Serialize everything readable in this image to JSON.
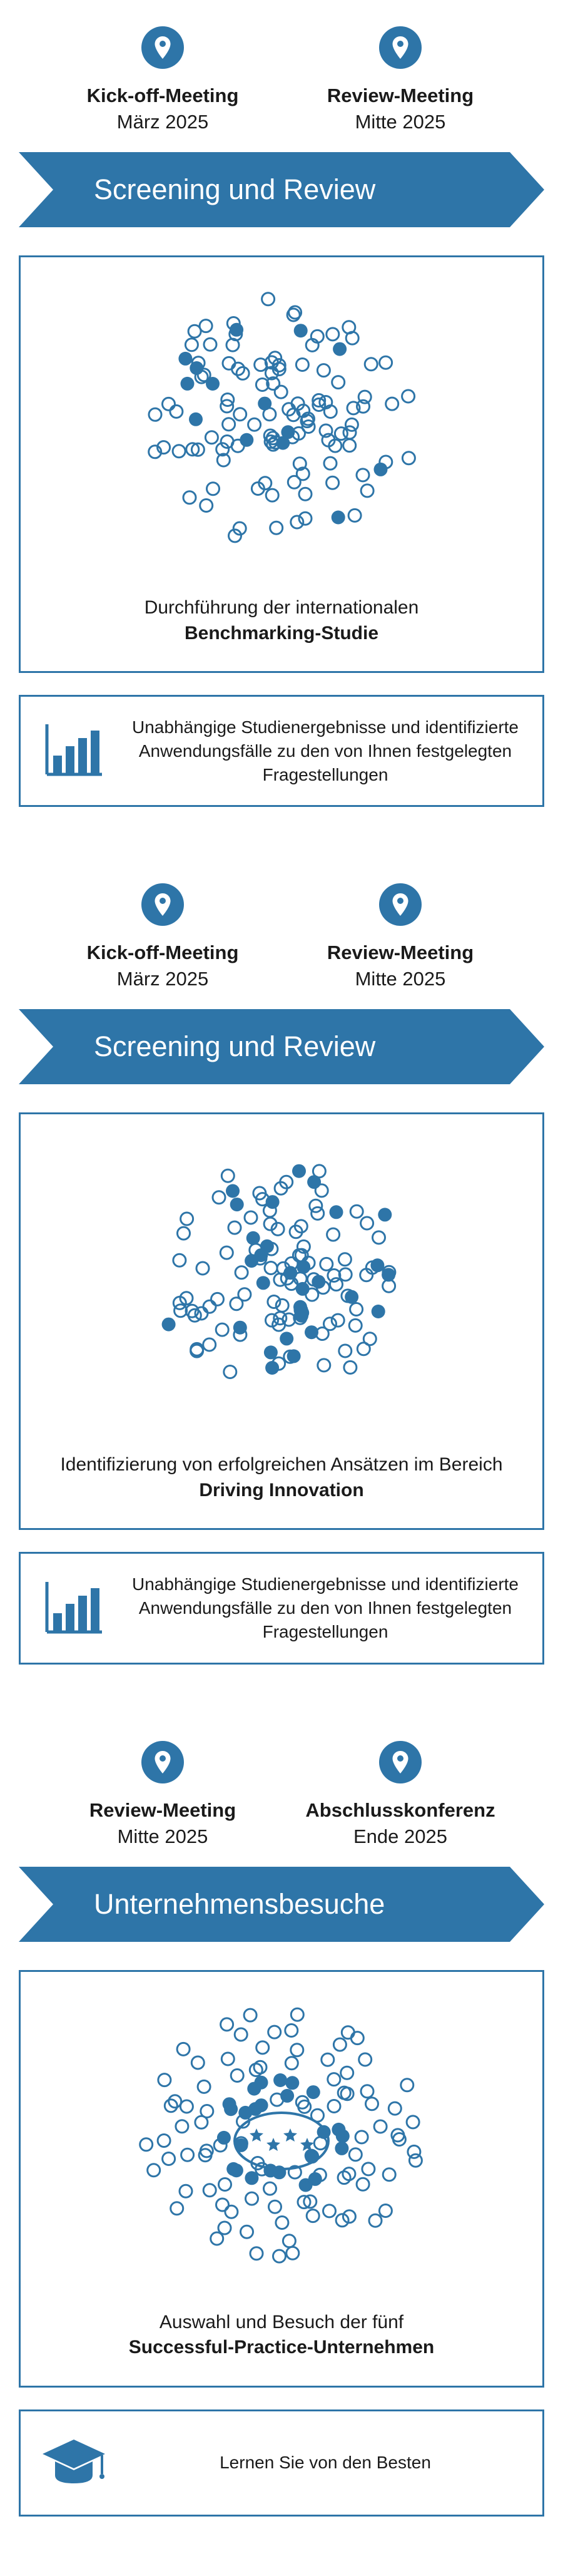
{
  "colors": {
    "primary": "#2e75a8",
    "text": "#1a1a1a",
    "bg": "#ffffff"
  },
  "phases": [
    {
      "milestones": [
        {
          "title": "Kick-off-Meeting",
          "date": "März 2025"
        },
        {
          "title": "Review-Meeting",
          "date": "Mitte 2025"
        }
      ],
      "banner": "Screening und Review",
      "content_pre": "Durchführung der internationalen",
      "content_bold": "Benchmarking-Studie",
      "content_post": "",
      "viz": "scatter",
      "result_icon": "bars",
      "result_text": "Unabhängige Studienergebnisse und identifizierte Anwendungsfälle zu den von Ihnen festgelegten Fragestellungen"
    },
    {
      "milestones": [
        {
          "title": "Kick-off-Meeting",
          "date": "März 2025"
        },
        {
          "title": "Review-Meeting",
          "date": "Mitte 2025"
        }
      ],
      "banner": "Screening und Review",
      "content_pre": "Identifizierung von erfolgreichen Ansätzen im Bereich",
      "content_bold": "Driving Innovation",
      "content_post": "",
      "viz": "scatter-dense",
      "result_icon": "bars",
      "result_text": "Unabhängige Studienergebnisse und identifizierte Anwendungsfälle zu den von Ihnen festgelegten Fragestellungen"
    },
    {
      "milestones": [
        {
          "title": "Review-Meeting",
          "date": "Mitte 2025"
        },
        {
          "title": "Abschlusskonferenz",
          "date": "Ende 2025"
        }
      ],
      "banner": "Unternehmensbesuche",
      "content_pre": "Auswahl und Besuch der fünf",
      "content_bold": "Successful-Practice-Unternehmen",
      "content_post": "",
      "viz": "scatter-selected",
      "result_icon": "grad",
      "result_text": "Lernen Sie von den Besten"
    }
  ]
}
